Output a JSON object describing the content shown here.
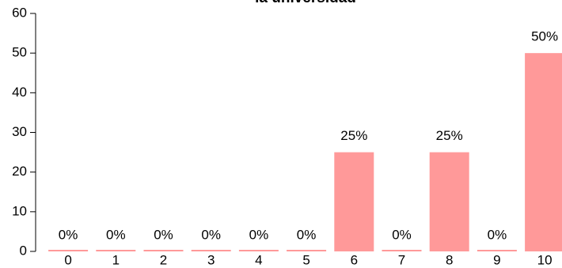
{
  "chart_data": {
    "type": "bar",
    "title": "la universidad",
    "categories": [
      "0",
      "1",
      "2",
      "3",
      "4",
      "5",
      "6",
      "7",
      "8",
      "9",
      "10"
    ],
    "values": [
      0,
      0,
      0,
      0,
      0,
      0,
      25,
      0,
      25,
      0,
      50
    ],
    "value_labels": [
      "0%",
      "0%",
      "0%",
      "0%",
      "0%",
      "0%",
      "25%",
      "0%",
      "25%",
      "0%",
      "50%"
    ],
    "color": "#ff9999",
    "ylim": [
      0,
      60
    ],
    "yticks": [
      0,
      10,
      20,
      30,
      40,
      50,
      60
    ]
  }
}
